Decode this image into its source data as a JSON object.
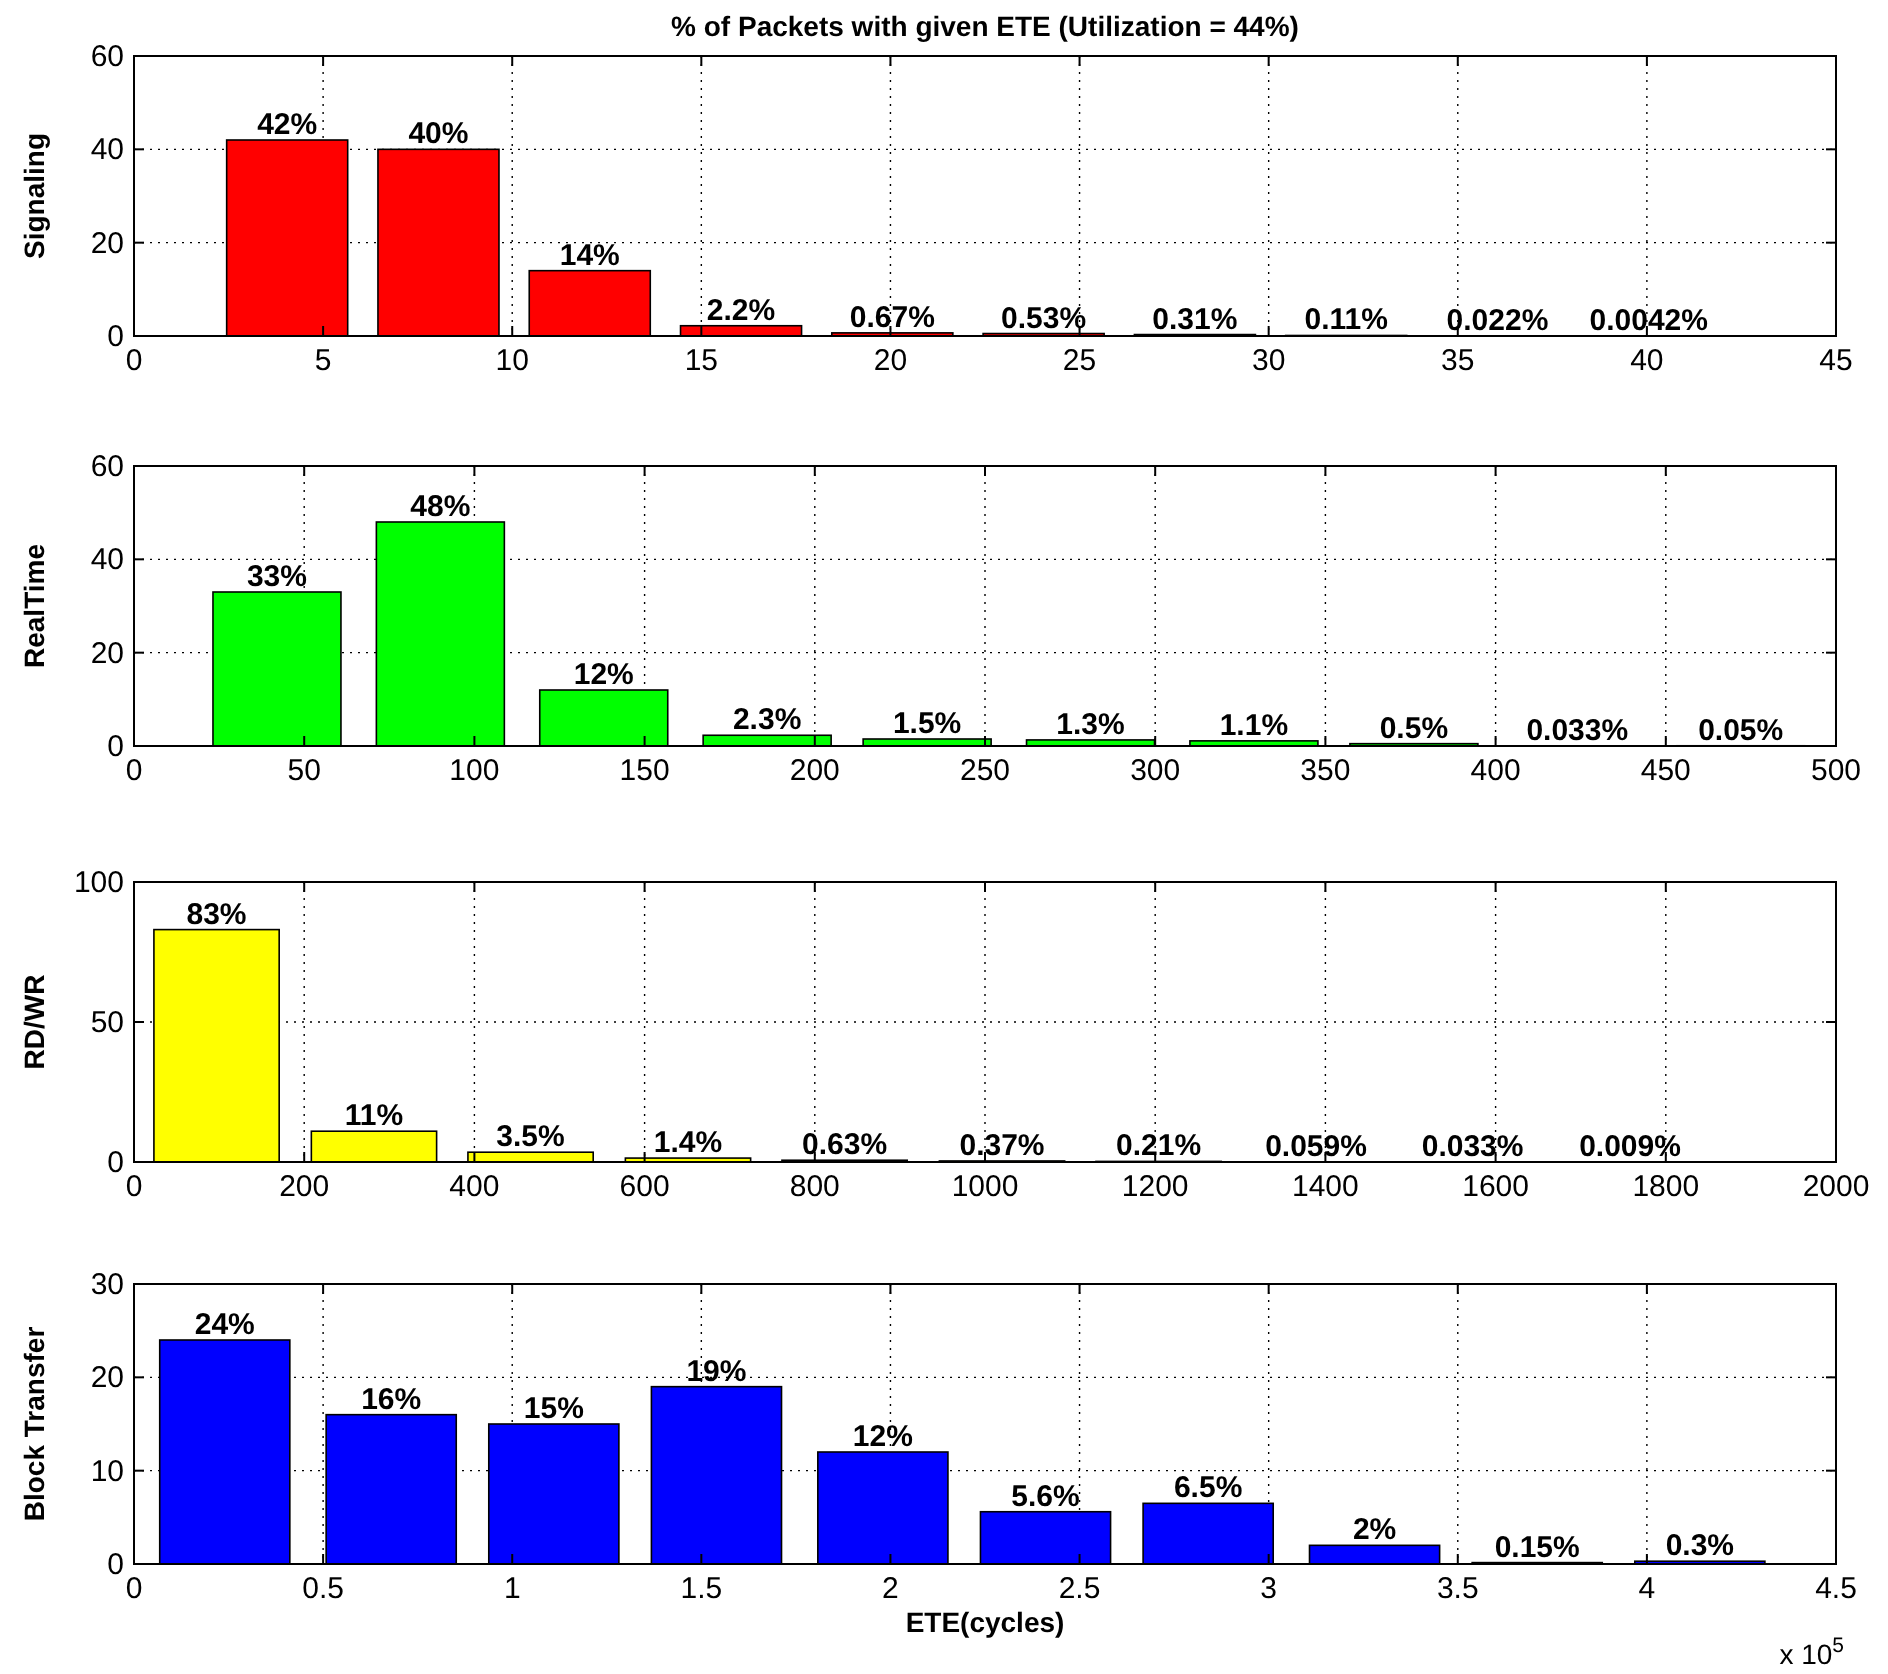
{
  "chart_data": [
    {
      "type": "bar",
      "title": "% of Packets with given ETE (Utilization = 44%)",
      "ylabel": "Signaling",
      "x": [
        4.05,
        8.05,
        12.05,
        16.05,
        20.05,
        24.05,
        28.05,
        32.05,
        36.05,
        40.05
      ],
      "series": [
        {
          "color": "#ff0000",
          "values": [
            42,
            40,
            14,
            2.2,
            0.67,
            0.53,
            0.31,
            0.11,
            0.022,
            0.0042
          ],
          "value_labels": [
            "42%",
            "40%",
            "14%",
            "2.2%",
            "0.67%",
            "0.53%",
            "0.31%",
            "0.11%",
            "0.022%",
            "0.0042%"
          ]
        }
      ],
      "xlim": [
        0,
        45
      ],
      "xticks": [
        0,
        5,
        10,
        15,
        20,
        25,
        30,
        35,
        40,
        45
      ],
      "ylim": [
        0,
        60
      ],
      "yticks": [
        0,
        20,
        40,
        60
      ],
      "grid": true
    },
    {
      "type": "bar",
      "ylabel": "RealTime",
      "x": [
        42,
        90,
        138,
        186,
        233,
        281,
        329,
        376,
        424,
        472
      ],
      "series": [
        {
          "color": "#00ff00",
          "values": [
            33,
            48,
            12,
            2.3,
            1.5,
            1.3,
            1.1,
            0.5,
            0.033,
            0.05
          ],
          "value_labels": [
            "33%",
            "48%",
            "12%",
            "2.3%",
            "1.5%",
            "1.3%",
            "1.1%",
            "0.5%",
            "0.033%",
            "0.05%"
          ]
        }
      ],
      "xlim": [
        0,
        500
      ],
      "xticks": [
        0,
        50,
        100,
        150,
        200,
        250,
        300,
        350,
        400,
        450,
        500
      ],
      "ylim": [
        0,
        60
      ],
      "yticks": [
        0,
        20,
        40,
        60
      ],
      "grid": true
    },
    {
      "type": "bar",
      "ylabel": "RD/WR",
      "x": [
        97,
        282,
        466,
        651,
        835,
        1020,
        1204,
        1389,
        1573,
        1758
      ],
      "series": [
        {
          "color": "#ffff00",
          "values": [
            83,
            11,
            3.5,
            1.4,
            0.63,
            0.37,
            0.21,
            0.059,
            0.033,
            0.009
          ],
          "value_labels": [
            "83%",
            "11%",
            "3.5%",
            "1.4%",
            "0.63%",
            "0.37%",
            "0.21%",
            "0.059%",
            "0.033%",
            "0.009%"
          ]
        }
      ],
      "xlim": [
        0,
        2000
      ],
      "xticks": [
        0,
        200,
        400,
        600,
        800,
        1000,
        1200,
        1400,
        1600,
        1800,
        2000
      ],
      "ylim": [
        0,
        100
      ],
      "yticks": [
        0,
        50,
        100
      ],
      "grid": true
    },
    {
      "type": "bar",
      "ylabel": "Block Transfer",
      "xlabel": "ETE(cycles)",
      "annotations": [
        "x 10$^{5}$"
      ],
      "x": [
        0.24,
        0.68,
        1.11,
        1.54,
        1.98,
        2.41,
        2.84,
        3.28,
        3.71,
        4.14
      ],
      "series": [
        {
          "color": "#0000ff",
          "values": [
            24,
            16,
            15,
            19,
            12,
            5.6,
            6.5,
            2,
            0.15,
            0.3
          ],
          "value_labels": [
            "24%",
            "16%",
            "15%",
            "19%",
            "12%",
            "5.6%",
            "6.5%",
            "2%",
            "0.15%",
            "0.3%"
          ]
        }
      ],
      "xlim": [
        0,
        4.5
      ],
      "xticks": [
        0,
        0.5,
        1,
        1.5,
        2,
        2.5,
        3,
        3.5,
        4,
        4.5
      ],
      "ylim": [
        0,
        30
      ],
      "yticks": [
        0,
        10,
        20,
        30
      ],
      "grid": true
    }
  ]
}
